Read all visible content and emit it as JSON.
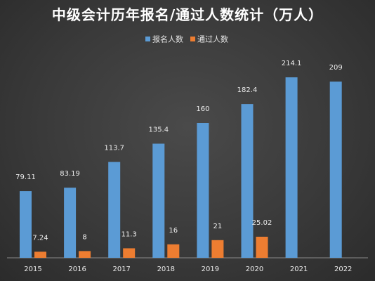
{
  "chart_data": {
    "type": "bar",
    "title": "中级会计历年报名/通过人数统计（万人）",
    "categories": [
      "2015",
      "2016",
      "2017",
      "2018",
      "2019",
      "2020",
      "2021",
      "2022"
    ],
    "series": [
      {
        "name": "报名人数",
        "color": "#5b9bd5",
        "values": [
          79.11,
          83.19,
          113.7,
          135.4,
          160,
          182.4,
          214.1,
          209
        ],
        "labels": [
          "79.11",
          "83.19",
          "113.7",
          "135.4",
          "160",
          "182.4",
          "214.1",
          "209"
        ]
      },
      {
        "name": "通过人数",
        "color": "#ed7d31",
        "values": [
          7.24,
          8,
          11.3,
          16,
          21,
          25.02,
          null,
          null
        ],
        "labels": [
          "7.24",
          "8",
          "11.3",
          "16",
          "21",
          "25.02",
          null,
          null
        ]
      }
    ],
    "xlabel": "",
    "ylabel": "",
    "ylim": [
      0,
      250
    ],
    "grid": false,
    "legend": "top-center"
  }
}
